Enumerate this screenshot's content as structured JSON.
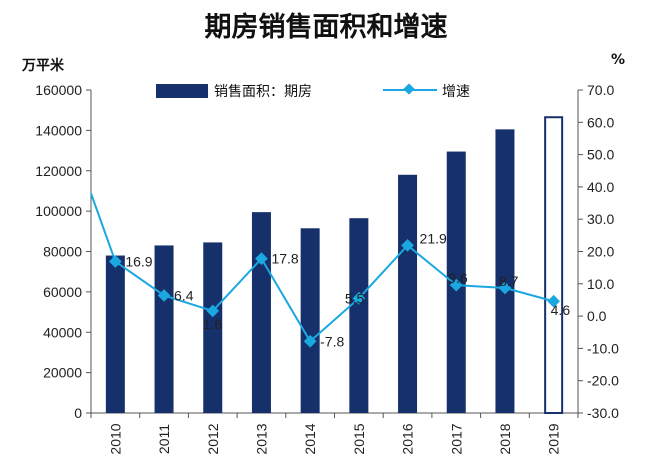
{
  "chart_data": {
    "type": "bar",
    "title": "期房销售面积和增速",
    "categories": [
      "2010",
      "2011",
      "2012",
      "2013",
      "2014",
      "2015",
      "2016",
      "2017",
      "2018",
      "2019"
    ],
    "series": [
      {
        "name": "销售面积：期房",
        "kind": "bar",
        "axis": "left",
        "values": [
          78000,
          83000,
          84500,
          99500,
          91500,
          96500,
          118000,
          129500,
          140500,
          147000
        ],
        "color": "#15306a",
        "highlight_last": true
      },
      {
        "name": "增速",
        "kind": "line",
        "axis": "right",
        "values": [
          16.9,
          6.4,
          1.6,
          17.8,
          -7.8,
          5.5,
          21.9,
          9.6,
          8.7,
          4.6
        ],
        "line_start_value": 38.0,
        "color": "#1ba8e0",
        "data_labels": [
          "16.9",
          "6.4",
          "1.6",
          "17.8",
          "-7.8",
          "5.5",
          "21.9",
          "9.6",
          "8.7",
          "4.6"
        ]
      }
    ],
    "y_left": {
      "unit": "万平米",
      "min": 0,
      "max": 160000,
      "ticks": [
        "0",
        "20000",
        "40000",
        "60000",
        "80000",
        "100000",
        "120000",
        "140000",
        "160000"
      ]
    },
    "y_right": {
      "unit": "%",
      "min": -30,
      "max": 70,
      "ticks": [
        "-30.0",
        "-20.0",
        "-10.0",
        "0.0",
        "10.0",
        "20.0",
        "30.0",
        "40.0",
        "50.0",
        "60.0",
        "70.0"
      ]
    },
    "legend_position": "top",
    "grid": false
  }
}
